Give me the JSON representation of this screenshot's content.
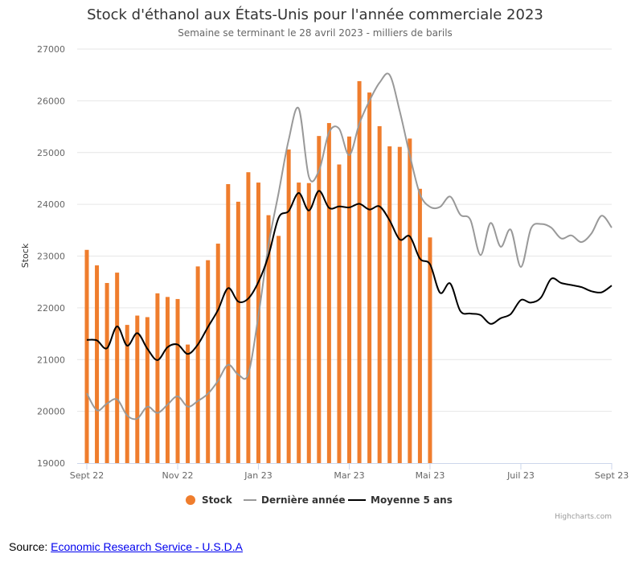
{
  "colors": {
    "stock": "#ef7d2d",
    "previous_year": "#999999",
    "avg5": "#000000"
  },
  "chart_data": {
    "type": "bar",
    "title": "Stock d'éthanol aux États-Unis pour l'année commerciale 2023",
    "subtitle": "Semaine se terminant le 28 avril 2023 - milliers de barils",
    "ylabel": "Stock",
    "ylim": [
      19000,
      27000
    ],
    "yticks": [
      "19000",
      "20000",
      "21000",
      "22000",
      "23000",
      "24000",
      "25000",
      "26000",
      "27000"
    ],
    "x_ticks": [
      "Sept 22",
      "Nov 22",
      "Jan 23",
      "Mar 23",
      "Mai 23",
      "Juil 23",
      "Sept 23"
    ],
    "x_tick_weeks": [
      0,
      9,
      17,
      26,
      34,
      43,
      52
    ],
    "x_range_weeks": [
      0,
      52
    ],
    "legend": [
      "Stock",
      "Dernière année",
      "Moyenne 5 ans"
    ],
    "legend_position": "bottom-center",
    "grid": true,
    "series": [
      {
        "name": "Stock",
        "type": "bar",
        "week_start": 0,
        "values": [
          23120,
          22820,
          22480,
          22680,
          21670,
          21850,
          21820,
          22280,
          22210,
          22170,
          21290,
          22800,
          22920,
          23240,
          24390,
          24050,
          24620,
          24420,
          23790,
          23390,
          25060,
          24420,
          24410,
          25320,
          25570,
          24770,
          25310,
          26380,
          26160,
          25510,
          25120,
          25110,
          25270,
          24300,
          23360
        ]
      },
      {
        "name": "Dernière année",
        "type": "line",
        "week_start": 0,
        "values": [
          20350,
          20020,
          20150,
          20230,
          19920,
          19860,
          20090,
          19970,
          20130,
          20290,
          20090,
          20200,
          20340,
          20590,
          20900,
          20710,
          20720,
          21850,
          23210,
          24220,
          25250,
          25850,
          24530,
          24650,
          25390,
          25460,
          24950,
          25560,
          26000,
          26350,
          26500,
          25800,
          24950,
          24200,
          23950,
          23950,
          24150,
          23800,
          23700,
          23020,
          23640,
          23180,
          23510,
          22790,
          23530,
          23620,
          23550,
          23340,
          23400,
          23270,
          23440,
          23780,
          23550
        ]
      },
      {
        "name": "Moyenne 5 ans",
        "type": "line",
        "week_start": 0,
        "values": [
          21380,
          21370,
          21220,
          21640,
          21270,
          21510,
          21210,
          20990,
          21240,
          21290,
          21110,
          21290,
          21630,
          21960,
          22380,
          22120,
          22180,
          22500,
          23010,
          23740,
          23870,
          24220,
          23880,
          24260,
          23930,
          23960,
          23940,
          24010,
          23900,
          23960,
          23690,
          23320,
          23380,
          22950,
          22840,
          22290,
          22470,
          21940,
          21890,
          21860,
          21690,
          21800,
          21880,
          22150,
          22100,
          22200,
          22560,
          22480,
          22440,
          22400,
          22320,
          22300,
          22430
        ]
      }
    ]
  },
  "legend_labels": {
    "stock": "Stock",
    "previous_year": "Dernière année",
    "avg5": "Moyenne 5 ans"
  },
  "credits": "Highcharts.com",
  "source": {
    "prefix": "Source:",
    "link_text": "Economic Research Service - U.S.D.A"
  }
}
